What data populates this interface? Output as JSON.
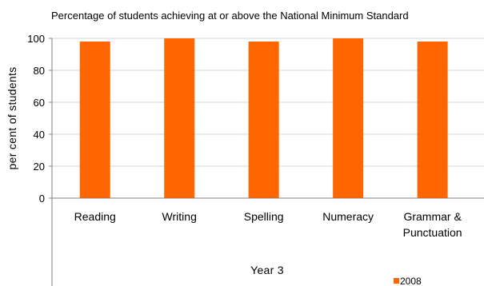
{
  "chart_data": {
    "type": "bar",
    "title": "Percentage of students achieving at or above the National Minimum Standard",
    "ylabel": "per cent of students",
    "xlabel": "Year 3",
    "ylim": [
      0,
      100
    ],
    "yticks": [
      "0",
      "20",
      "40",
      "60",
      "80",
      "100"
    ],
    "categories": [
      [
        "Reading"
      ],
      [
        "Writing"
      ],
      [
        "Spelling"
      ],
      [
        "Numeracy"
      ],
      [
        "Grammar &",
        "Punctuation"
      ]
    ],
    "series": [
      {
        "name": "2008",
        "values": [
          98,
          100,
          98,
          100,
          98
        ]
      }
    ],
    "colors": {
      "bar": "#ff6600"
    },
    "grid": true,
    "legend_position": "bottom-right"
  }
}
